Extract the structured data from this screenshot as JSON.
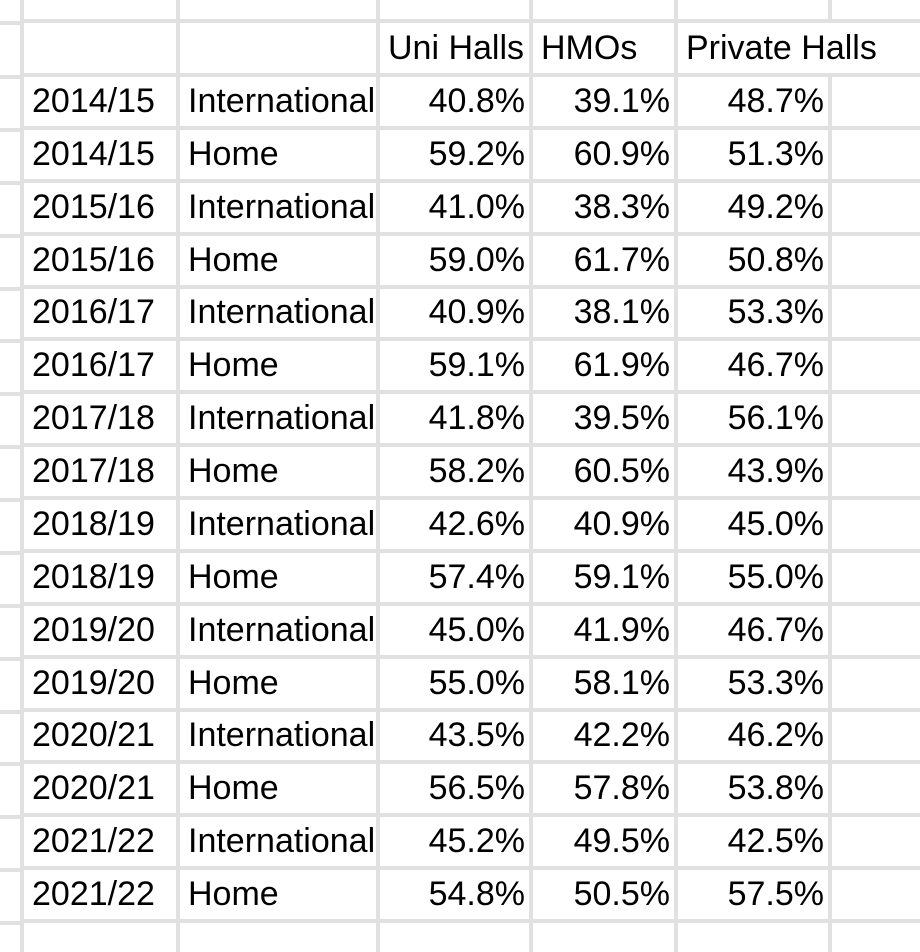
{
  "grid": {
    "background_color": "#ffffff",
    "gridline_color": "#e1e1e1",
    "text_color": "#000000"
  },
  "table": {
    "column_headers": [
      "Uni Halls",
      "HMOs",
      "Private Halls"
    ],
    "rows": [
      {
        "year": "2014/15",
        "group": "International",
        "values": [
          "40.8%",
          "39.1%",
          "48.7%"
        ]
      },
      {
        "year": "2014/15",
        "group": "Home",
        "values": [
          "59.2%",
          "60.9%",
          "51.3%"
        ]
      },
      {
        "year": "2015/16",
        "group": "International",
        "values": [
          "41.0%",
          "38.3%",
          "49.2%"
        ]
      },
      {
        "year": "2015/16",
        "group": "Home",
        "values": [
          "59.0%",
          "61.7%",
          "50.8%"
        ]
      },
      {
        "year": "2016/17",
        "group": "International",
        "values": [
          "40.9%",
          "38.1%",
          "53.3%"
        ]
      },
      {
        "year": "2016/17",
        "group": "Home",
        "values": [
          "59.1%",
          "61.9%",
          "46.7%"
        ]
      },
      {
        "year": "2017/18",
        "group": "International",
        "values": [
          "41.8%",
          "39.5%",
          "56.1%"
        ]
      },
      {
        "year": "2017/18",
        "group": "Home",
        "values": [
          "58.2%",
          "60.5%",
          "43.9%"
        ]
      },
      {
        "year": "2018/19",
        "group": "International",
        "values": [
          "42.6%",
          "40.9%",
          "45.0%"
        ]
      },
      {
        "year": "2018/19",
        "group": "Home",
        "values": [
          "57.4%",
          "59.1%",
          "55.0%"
        ]
      },
      {
        "year": "2019/20",
        "group": "International",
        "values": [
          "45.0%",
          "41.9%",
          "46.7%"
        ]
      },
      {
        "year": "2019/20",
        "group": "Home",
        "values": [
          "55.0%",
          "58.1%",
          "53.3%"
        ]
      },
      {
        "year": "2020/21",
        "group": "International",
        "values": [
          "43.5%",
          "42.2%",
          "46.2%"
        ]
      },
      {
        "year": "2020/21",
        "group": "Home",
        "values": [
          "56.5%",
          "57.8%",
          "53.8%"
        ]
      },
      {
        "year": "2021/22",
        "group": "International",
        "values": [
          "45.2%",
          "49.5%",
          "42.5%"
        ]
      },
      {
        "year": "2021/22",
        "group": "Home",
        "values": [
          "54.8%",
          "50.5%",
          "57.5%"
        ]
      }
    ]
  },
  "chart_data": {
    "type": "table",
    "columns": [
      "",
      "",
      "Uni Halls",
      "HMOs",
      "Private Halls"
    ],
    "value_format": "percent",
    "rows": [
      [
        "2014/15",
        "International",
        40.8,
        39.1,
        48.7
      ],
      [
        "2014/15",
        "Home",
        59.2,
        60.9,
        51.3
      ],
      [
        "2015/16",
        "International",
        41.0,
        38.3,
        49.2
      ],
      [
        "2015/16",
        "Home",
        59.0,
        61.7,
        50.8
      ],
      [
        "2016/17",
        "International",
        40.9,
        38.1,
        53.3
      ],
      [
        "2016/17",
        "Home",
        59.1,
        61.9,
        46.7
      ],
      [
        "2017/18",
        "International",
        41.8,
        39.5,
        56.1
      ],
      [
        "2017/18",
        "Home",
        58.2,
        60.5,
        43.9
      ],
      [
        "2018/19",
        "International",
        42.6,
        40.9,
        45.0
      ],
      [
        "2018/19",
        "Home",
        57.4,
        59.1,
        55.0
      ],
      [
        "2019/20",
        "International",
        45.0,
        41.9,
        46.7
      ],
      [
        "2019/20",
        "Home",
        55.0,
        58.1,
        53.3
      ],
      [
        "2020/21",
        "International",
        43.5,
        42.2,
        46.2
      ],
      [
        "2020/21",
        "Home",
        56.5,
        57.8,
        53.8
      ],
      [
        "2021/22",
        "International",
        45.2,
        49.5,
        42.5
      ],
      [
        "2021/22",
        "Home",
        54.8,
        50.5,
        57.5
      ]
    ]
  }
}
